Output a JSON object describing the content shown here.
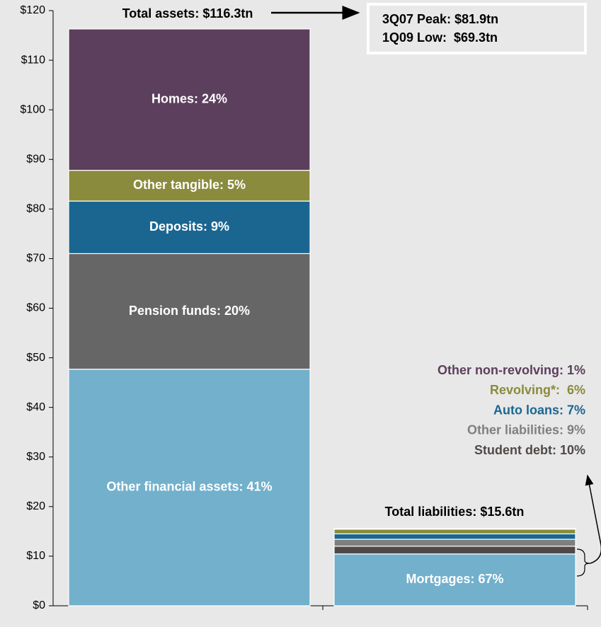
{
  "chart_data": {
    "type": "stacked_bar",
    "categories": [
      null,
      null
    ],
    "ylim": [
      0,
      120
    ],
    "yticks": [
      {
        "value": 0,
        "label": "$0"
      },
      {
        "value": 10,
        "label": "$10"
      },
      {
        "value": 20,
        "label": "$20"
      },
      {
        "value": 30,
        "label": "$30"
      },
      {
        "value": 40,
        "label": "$40"
      },
      {
        "value": 50,
        "label": "$50"
      },
      {
        "value": 60,
        "label": "$60"
      },
      {
        "value": 70,
        "label": "$70"
      },
      {
        "value": 80,
        "label": "$80"
      },
      {
        "value": 90,
        "label": "$90"
      },
      {
        "value": 100,
        "label": "$100"
      },
      {
        "value": 110,
        "label": "$110"
      },
      {
        "value": 120,
        "label": "$120"
      }
    ],
    "series": [
      {
        "name": "Other financial assets: 41%",
        "color": "#72b0cc",
        "values": [
          47.7,
          null
        ]
      },
      {
        "name": "Pension funds: 20%",
        "color": "#666666",
        "values": [
          23.3,
          null
        ]
      },
      {
        "name": "Deposits: 9%",
        "color": "#1b6690",
        "values": [
          10.6,
          null
        ]
      },
      {
        "name": "Other tangible: 5%",
        "color": "#8a8b3d",
        "values": [
          6.2,
          null
        ]
      },
      {
        "name": "Homes: 24%",
        "color": "#5c3f5c",
        "values": [
          28.5,
          null
        ]
      },
      {
        "name": "Mortgages: 67%",
        "color": "#72b0cc",
        "values": [
          null,
          10.45
        ]
      },
      {
        "name": "Student debt: 10%",
        "color": "#4f4a48",
        "values": [
          null,
          1.56
        ]
      },
      {
        "name": "Other liabilities: 9%",
        "color": "#7f7f7f",
        "values": [
          null,
          1.4
        ]
      },
      {
        "name": "Auto loans: 7%",
        "color": "#1b6690",
        "values": [
          null,
          1.09
        ]
      },
      {
        "name": "Revolving*:  6%",
        "color": "#8a8b3d",
        "values": [
          null,
          0.94
        ]
      },
      {
        "name": "Other non-revolving: 1%",
        "color": "#5c3f5c",
        "values": [
          null,
          0.16
        ]
      }
    ],
    "annotations": {
      "total_assets": "Total assets: $116.3tn",
      "total_liabilities": "Total liabilities: $15.6tn",
      "peak": "3Q07 Peak: $81.9tn",
      "low": "1Q09 Low:  $69.3tn"
    }
  }
}
